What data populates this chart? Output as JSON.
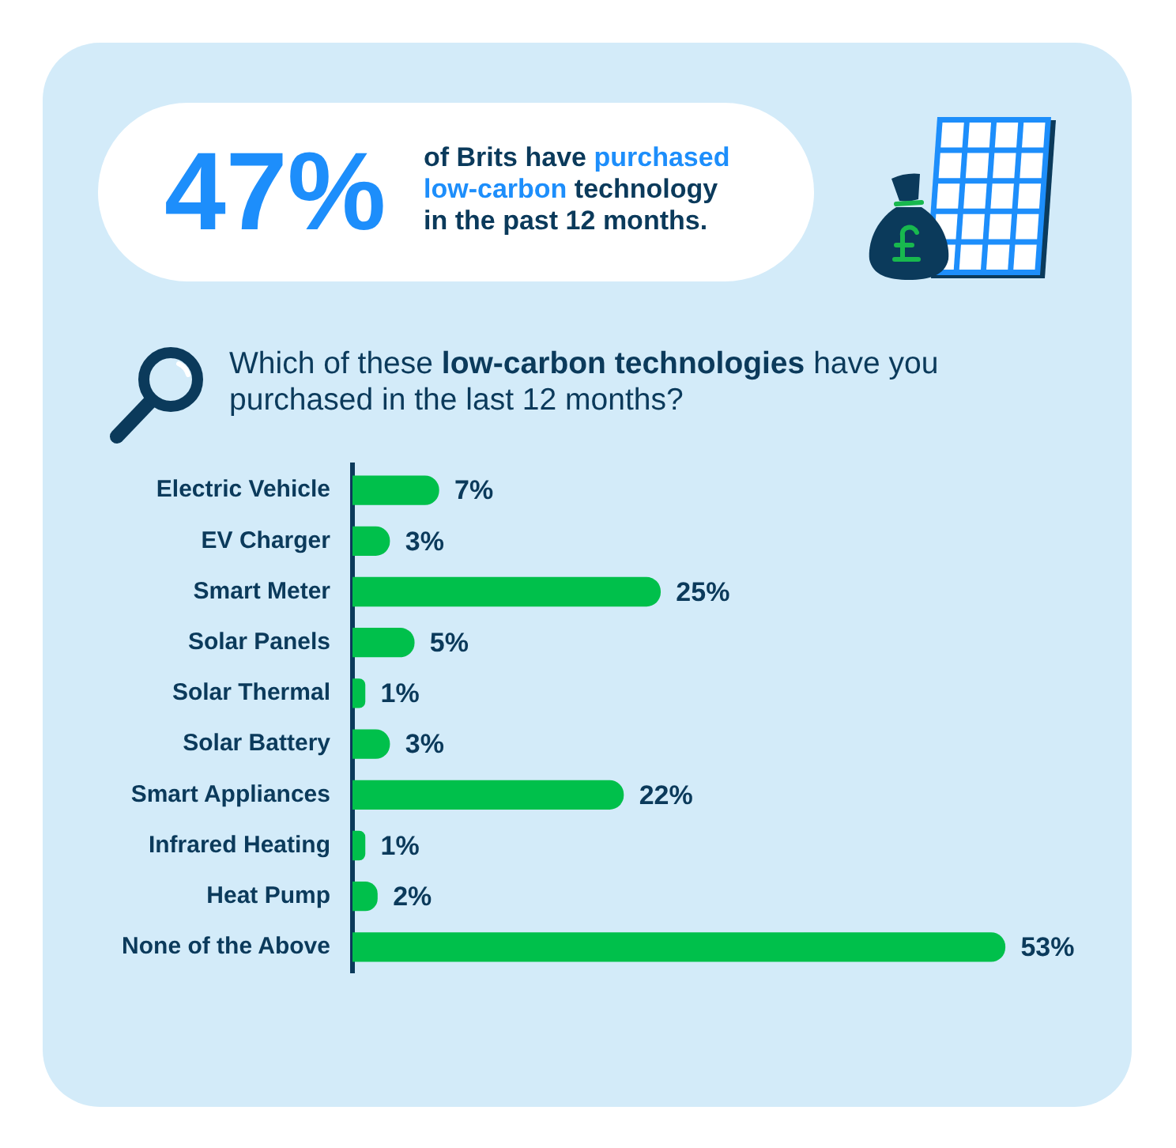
{
  "chart_data": {
    "type": "bar",
    "orientation": "horizontal",
    "title": "Which of these low-carbon technologies have you purchased in the last 12 months?",
    "annotations": [
      "47%",
      "of Brits have purchased low-carbon technology in the past 12 months."
    ],
    "categories": [
      "Electric Vehicle",
      "EV Charger",
      "Smart Meter",
      "Solar Panels",
      "Solar Thermal",
      "Solar Battery",
      "Smart Appliances",
      "Infrared Heating",
      "Heat Pump",
      "None of the Above"
    ],
    "values": [
      7,
      3,
      25,
      5,
      1,
      3,
      22,
      1,
      2,
      53
    ],
    "value_labels": [
      "7%",
      "3%",
      "25%",
      "5%",
      "1%",
      "3%",
      "22%",
      "1%",
      "2%",
      "53%"
    ],
    "color": "#00c04b"
  }
}
